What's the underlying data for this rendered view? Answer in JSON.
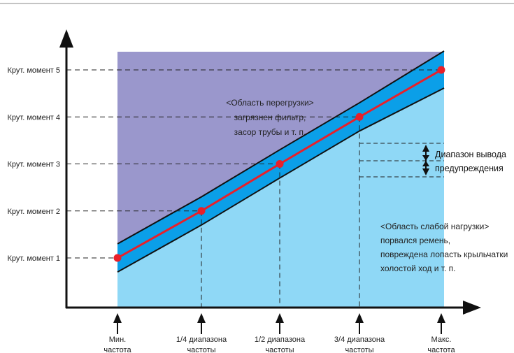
{
  "chart_data": {
    "type": "area",
    "x_categories": [
      "Мин. частота",
      "1/4 диапазона частоты",
      "1/2 диапазона частоты",
      "3/4 диапазона частоты",
      "Макс. частота"
    ],
    "x_label_lines": [
      [
        "Мин.",
        "частота"
      ],
      [
        "1/4 диапазона",
        "частоты"
      ],
      [
        "1/2 диапазона",
        "частоты"
      ],
      [
        "3/4 диапазона",
        "частоты"
      ],
      [
        "Макс.",
        "частота"
      ]
    ],
    "y_levels": [
      "Крут. момент 1",
      "Крут. момент 2",
      "Крут. момент 3",
      "Крут. момент 4",
      "Крут. момент 5"
    ],
    "y_level_values": [
      1,
      2,
      3,
      4,
      5
    ],
    "series": [
      {
        "role": "reference-torque",
        "values": [
          1,
          2,
          3,
          4,
          5
        ]
      }
    ],
    "band_upper_offset": 0.3,
    "band_lower_offset": 0.3,
    "regions": {
      "overload": [
        "<Область перегрузки>",
        "загрязнен фильтр,",
        "засор трубы и т. п."
      ],
      "underload": [
        "<Область слабой нагрузки>",
        "порвался ремень,",
        "повреждена лопасть крыльчатки",
        "холостой ход и т. п."
      ]
    },
    "warning_range_label": [
      "Диапазон вывода",
      "предупреждения"
    ],
    "colors": {
      "overload": "#9a97cc",
      "underload": "#8fd8f6",
      "band": "#0b9fe8",
      "line": "#e8202a",
      "axis": "#111111"
    }
  }
}
